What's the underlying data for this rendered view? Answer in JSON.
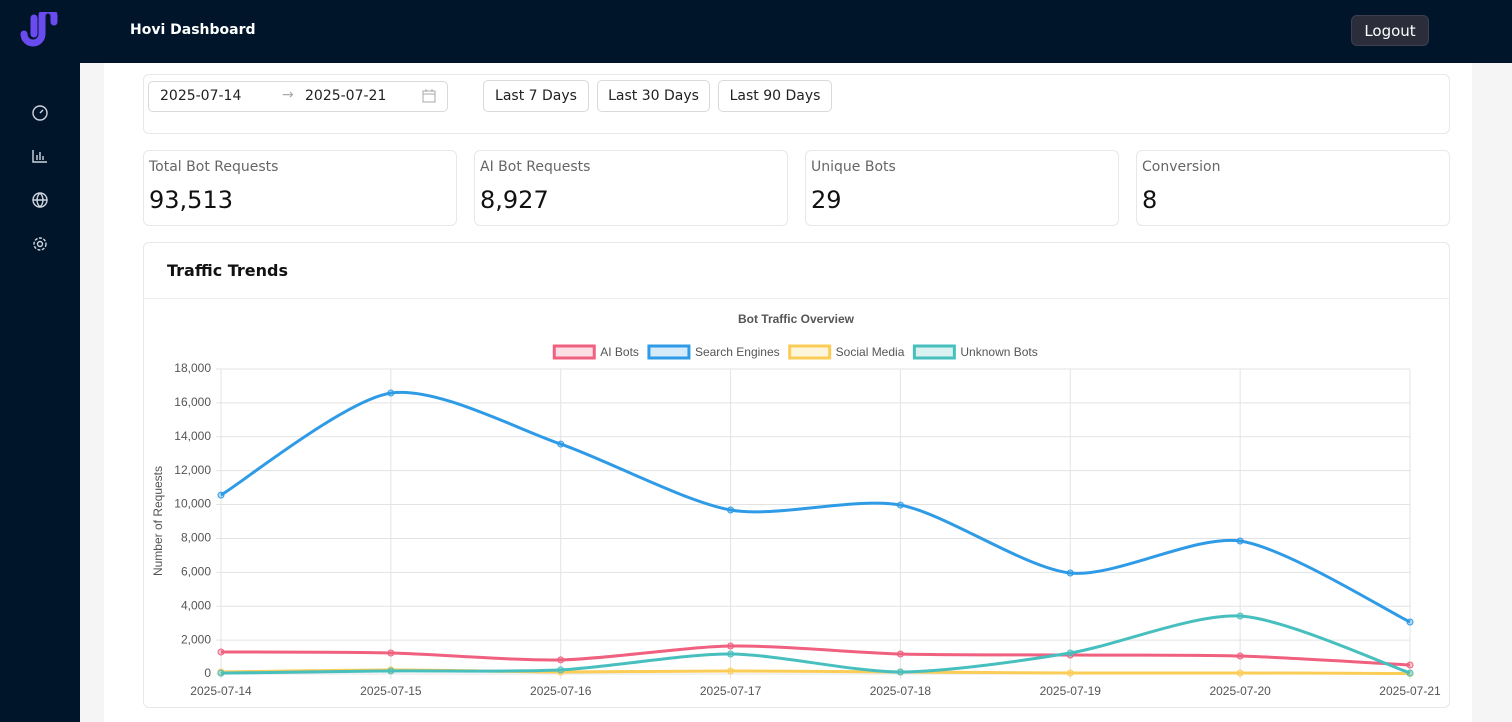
{
  "header": {
    "title": "Hovi Dashboard",
    "logout": "Logout"
  },
  "filters": {
    "start": "2025-07-14",
    "end": "2025-07-21",
    "presets": [
      "Last 7 Days",
      "Last 30 Days",
      "Last 90 Days"
    ]
  },
  "stats": [
    {
      "label": "Total Bot Requests",
      "value": "93,513"
    },
    {
      "label": "AI Bot Requests",
      "value": "8,927"
    },
    {
      "label": "Unique Bots",
      "value": "29"
    },
    {
      "label": "Conversion",
      "value": "8"
    }
  ],
  "panel": {
    "title": "Traffic Trends"
  },
  "chart_data": {
    "type": "line",
    "title": "Bot Traffic Overview",
    "y_label": "Number of Requests",
    "x": [
      "2025-07-14",
      "2025-07-15",
      "2025-07-16",
      "2025-07-17",
      "2025-07-18",
      "2025-07-19",
      "2025-07-20",
      "2025-07-21"
    ],
    "series": [
      {
        "name": "AI Bots",
        "color": "#f0607f",
        "values": [
          1300,
          1240,
          830,
          1650,
          1180,
          1120,
          1060,
          530
        ]
      },
      {
        "name": "Search Engines",
        "color": "#2f9be6",
        "values": [
          10560,
          16580,
          13570,
          9680,
          9970,
          5960,
          7850,
          3070
        ]
      },
      {
        "name": "Social Media",
        "color": "#fbcd56",
        "values": [
          120,
          240,
          120,
          180,
          120,
          60,
          60,
          30
        ]
      },
      {
        "name": "Unknown Bots",
        "color": "#48bfbf",
        "values": [
          50,
          180,
          240,
          1180,
          120,
          1240,
          3420,
          60
        ]
      }
    ],
    "ylim": [
      0,
      18000
    ],
    "yticks": [
      0,
      {
        "value": 2000,
        "label": "2,000"
      },
      {
        "value": 4000,
        "label": "4,000"
      },
      {
        "value": 6000,
        "label": "6,000"
      },
      {
        "value": 8000,
        "label": "8,000"
      },
      {
        "value": 10000,
        "label": "10,000"
      },
      {
        "value": 12000,
        "label": "12,000"
      },
      {
        "value": 14000,
        "label": "14,000"
      },
      {
        "value": 16000,
        "label": "16,000"
      },
      {
        "value": 18000,
        "label": "18,000"
      }
    ],
    "grid": true,
    "legend": "top"
  }
}
